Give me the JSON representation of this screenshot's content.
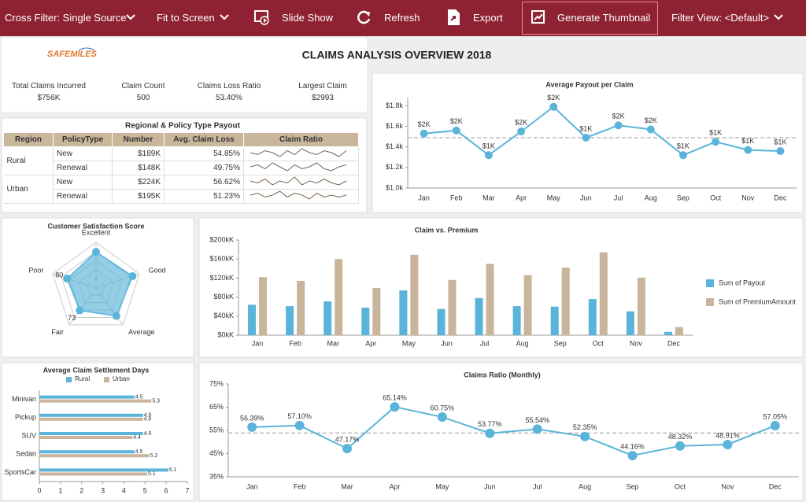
{
  "toolbar": {
    "items": [
      "Cross Filter: Single Source",
      "Fit to Screen",
      "Slide Show",
      "Refresh",
      "Export",
      "Generate Thumbnail",
      "Filter View: <Default>"
    ]
  },
  "header": {
    "logo": "SAFEMILES",
    "title": "CLAIMS ANALYSIS OVERVIEW 2018"
  },
  "kpis": [
    {
      "label": "Total Claims Incurred",
      "value": "$756K"
    },
    {
      "label": "Claim Count",
      "value": "500"
    },
    {
      "label": "Claims Loss Ratio",
      "value": "53.40%"
    },
    {
      "label": "Largest Claim",
      "value": "$2993"
    }
  ],
  "table": {
    "title": "Regional & Policy Type Payout",
    "columns": [
      "Region",
      "PolicyType",
      "Number",
      "Avg. Claim Loss",
      "Claim Ratio"
    ],
    "groups": [
      {
        "region": "Rural",
        "rows": [
          [
            "New",
            "$189K",
            "54.85%"
          ],
          [
            "Renewal",
            "$148K",
            "49.75%"
          ]
        ],
        "sparklines": [
          [
            55,
            54,
            56,
            55,
            53,
            56,
            54,
            57,
            55,
            54,
            56,
            55,
            53,
            56
          ],
          [
            50,
            51,
            49,
            52,
            50,
            48,
            51,
            49,
            50,
            52,
            49,
            48,
            50,
            51
          ]
        ]
      },
      {
        "region": "Urban",
        "rows": [
          [
            "New",
            "$224K",
            "56.62%"
          ],
          [
            "Renewal",
            "$195K",
            "51.23%"
          ]
        ],
        "sparklines": [
          [
            57,
            56,
            58,
            55,
            57,
            56,
            59,
            55,
            57,
            56,
            58,
            56,
            55,
            57
          ],
          [
            51,
            52,
            50,
            51,
            53,
            50,
            52,
            51,
            49,
            52,
            50,
            51,
            50,
            51
          ]
        ]
      }
    ]
  },
  "chart_data": [
    {
      "type": "line",
      "title": "Average Payout per Claim",
      "categories": [
        "Jan",
        "Feb",
        "Mar",
        "Apr",
        "May",
        "Jun",
        "Jul",
        "Aug",
        "Sep",
        "Oct",
        "Nov",
        "Dec"
      ],
      "values": [
        1530,
        1560,
        1320,
        1550,
        1790,
        1490,
        1610,
        1570,
        1320,
        1450,
        1370,
        1360
      ],
      "value_labels": [
        "$2K",
        "$2K",
        "$1K",
        "$2K",
        "$2K",
        "$1K",
        "$2K",
        "$2K",
        "$1K",
        "$1K",
        "$1K",
        "$1K"
      ],
      "color": "#5ab4d9",
      "ylim": [
        1000,
        1880
      ],
      "yticks": [
        {
          "value": 1000,
          "label": "$1.0k"
        },
        {
          "value": 1200,
          "label": "$1.2k"
        },
        {
          "value": 1400,
          "label": "$1.4k"
        },
        {
          "value": 1600,
          "label": "$1.6k"
        },
        {
          "value": 1800,
          "label": "$1.8k"
        }
      ],
      "average_line": 1490
    },
    {
      "type": "radar",
      "title": "Customer Satisfaction Score",
      "categories": [
        "Excellent",
        "Good",
        "Average",
        "Fair",
        "Poor"
      ],
      "values": [
        95,
        101,
        91,
        73,
        80
      ],
      "value_labels": [
        null,
        null,
        null,
        "73",
        "80"
      ],
      "color": "#5ab4d9",
      "rlim": [
        0,
        120
      ]
    },
    {
      "type": "bar",
      "title": "Claim vs. Premium",
      "categories": [
        "Jan",
        "Feb",
        "Mar",
        "Apr",
        "May",
        "Jun",
        "Jul",
        "Aug",
        "Sep",
        "Oct",
        "Nov",
        "Dec"
      ],
      "series": [
        {
          "name": "Sum of Payout",
          "color": "#5ab4d9",
          "values": [
            64000,
            61000,
            71000,
            58000,
            94000,
            55000,
            78000,
            61000,
            60000,
            76000,
            50000,
            7000
          ]
        },
        {
          "name": "Sum of PremiumAmount",
          "color": "#c8b59b",
          "values": [
            122000,
            114000,
            160000,
            99000,
            169000,
            116000,
            150000,
            126000,
            142000,
            174000,
            121000,
            17000
          ]
        }
      ],
      "ylim": [
        0,
        200000
      ],
      "yticks": [
        {
          "value": 0,
          "label": "$0kK"
        },
        {
          "value": 40000,
          "label": "$40kK"
        },
        {
          "value": 80000,
          "label": "$80kK"
        },
        {
          "value": 120000,
          "label": "$120kK"
        },
        {
          "value": 160000,
          "label": "$160kK"
        },
        {
          "value": 200000,
          "label": "$200kK"
        }
      ],
      "legend": "right"
    },
    {
      "type": "bar",
      "horizontal": true,
      "title": "Average Claim Settlement Days",
      "categories": [
        "Minivan",
        "Pickup",
        "SUV",
        "Sedan",
        "SportsCar"
      ],
      "series": [
        {
          "name": "Rural",
          "color": "#5ab4d9",
          "values": [
            4.5,
            4.9,
            4.9,
            4.5,
            6.1
          ]
        },
        {
          "name": "Urban",
          "color": "#c8b59b",
          "values": [
            5.3,
            4.9,
            4.4,
            5.2,
            5.1
          ]
        }
      ],
      "xlim": [
        0,
        7
      ],
      "xticks": [
        0,
        1,
        2,
        3,
        4,
        5,
        6,
        7
      ],
      "legend": "top"
    },
    {
      "type": "line",
      "title": "Claims Ratio (Monthly)",
      "categories": [
        "Jan",
        "Feb",
        "Mar",
        "Apr",
        "May",
        "Jun",
        "Jul",
        "Aug",
        "Sep",
        "Oct",
        "Nov",
        "Dec"
      ],
      "values": [
        56.39,
        57.1,
        47.17,
        65.14,
        60.75,
        53.77,
        55.54,
        52.35,
        44.16,
        48.32,
        48.91,
        57.05
      ],
      "value_labels": [
        "56.39%",
        "57.10%",
        "47.17%",
        "65.14%",
        "60.75%",
        "53.77%",
        "55.54%",
        "52.35%",
        "44.16%",
        "48.32%",
        "48.91%",
        "57.05%"
      ],
      "color": "#5ab4d9",
      "ylim": [
        35,
        75
      ],
      "yticks": [
        {
          "value": 35,
          "label": "35%"
        },
        {
          "value": 45,
          "label": "45%"
        },
        {
          "value": 55,
          "label": "55%"
        },
        {
          "value": 65,
          "label": "65%"
        },
        {
          "value": 75,
          "label": "75%"
        }
      ],
      "average_line": 53.89
    }
  ]
}
